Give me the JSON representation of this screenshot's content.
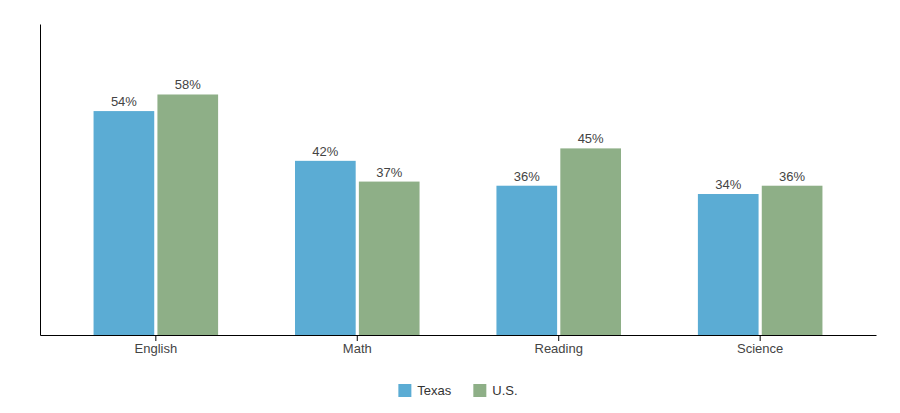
{
  "chart_data": {
    "type": "bar",
    "categories": [
      "English",
      "Math",
      "Reading",
      "Science"
    ],
    "series": [
      {
        "name": "Texas",
        "color": "#5BACD4",
        "values": [
          54,
          42,
          36,
          34
        ],
        "value_labels": [
          "54%",
          "42%",
          "36%",
          "34%"
        ]
      },
      {
        "name": "U.S.",
        "color": "#8EAF87",
        "values": [
          58,
          37,
          45,
          36
        ],
        "value_labels": [
          "58%",
          "37%",
          "45%",
          "36%"
        ]
      }
    ],
    "ylim": [
      0,
      75
    ],
    "grid": false,
    "legend": "bottom",
    "data_labels": true,
    "tick_labels": "x"
  }
}
